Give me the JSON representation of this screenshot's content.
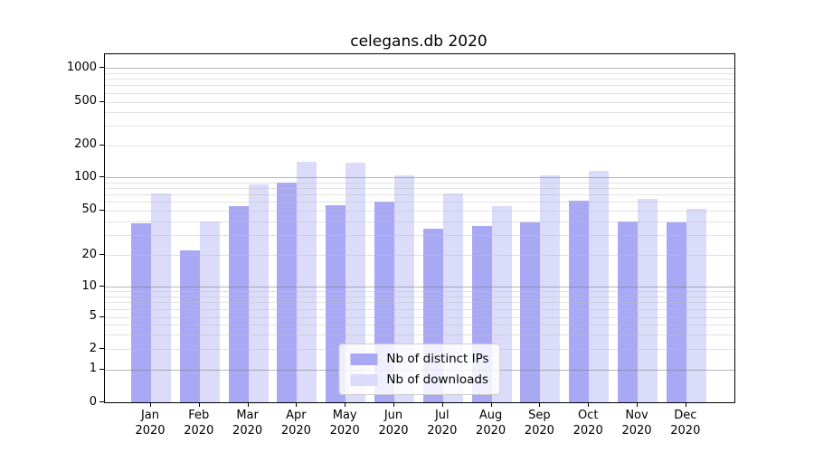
{
  "chart_data": {
    "type": "bar",
    "title": "celegans.db 2020",
    "x_months": [
      "Jan",
      "Feb",
      "Mar",
      "Apr",
      "May",
      "Jun",
      "Jul",
      "Aug",
      "Sep",
      "Oct",
      "Nov",
      "Dec"
    ],
    "x_year": "2020",
    "series": [
      {
        "name": "Nb of distinct IPs",
        "color": "#a8a8f5",
        "values": [
          38,
          22,
          54,
          89,
          56,
          60,
          34,
          36,
          39,
          61,
          40,
          39
        ]
      },
      {
        "name": "Nb of downloads",
        "color": "#dbdbfa",
        "values": [
          71,
          40,
          86,
          139,
          138,
          105,
          71,
          54,
          104,
          114,
          63,
          51
        ]
      }
    ],
    "yticks": [
      0,
      1,
      2,
      5,
      10,
      20,
      50,
      100,
      200,
      500,
      1000
    ],
    "yscale": "log-like with linear segment near zero",
    "ylim": [
      0,
      1330
    ],
    "grid": {
      "horizontal_major": [
        1,
        10,
        100,
        1000
      ],
      "horizontal_minor": [
        2,
        3,
        4,
        5,
        6,
        7,
        8,
        9,
        20,
        30,
        40,
        50,
        60,
        70,
        80,
        90,
        200,
        300,
        400,
        500,
        600,
        700,
        800,
        900
      ]
    },
    "legend": {
      "position": "lower center"
    }
  }
}
